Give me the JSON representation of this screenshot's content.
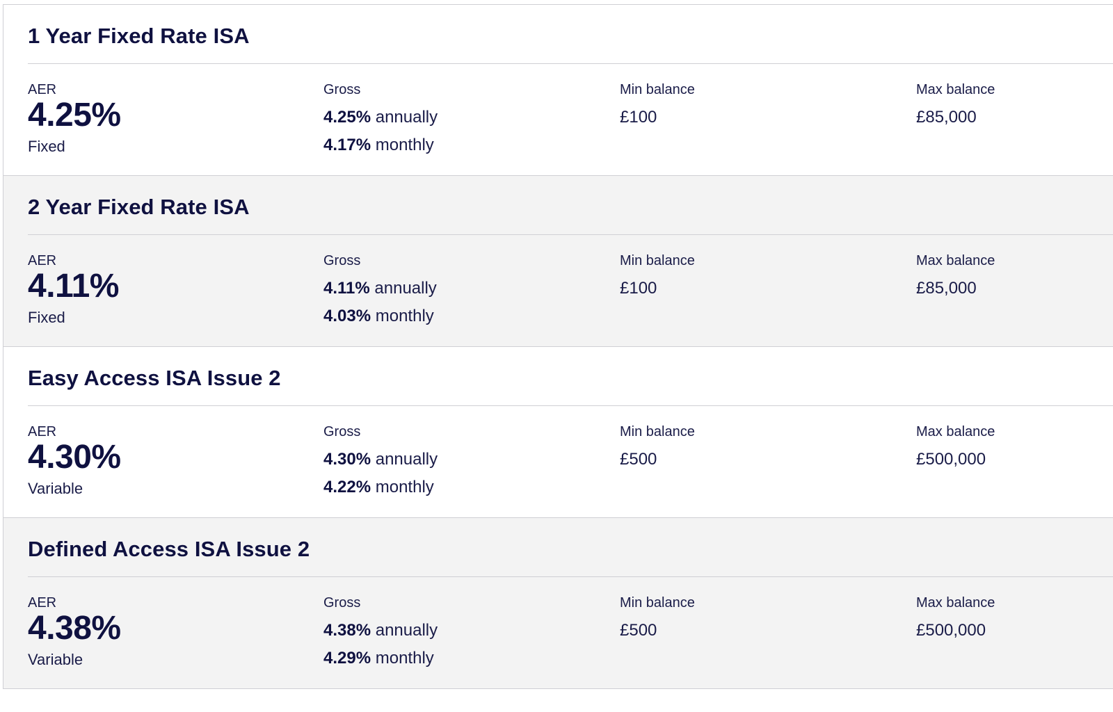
{
  "products": [
    {
      "name": "1 Year Fixed Rate ISA",
      "aer_label": "AER",
      "aer": "4.25%",
      "rate_type": "Fixed",
      "gross_label": "Gross",
      "gross_annual_rate": "4.25%",
      "gross_annual_text": "annually",
      "gross_monthly_rate": "4.17%",
      "gross_monthly_text": "monthly",
      "min_label": "Min balance",
      "min_balance": "£100",
      "max_label": "Max balance",
      "max_balance": "£85,000"
    },
    {
      "name": "2 Year Fixed Rate ISA",
      "aer_label": "AER",
      "aer": "4.11%",
      "rate_type": "Fixed",
      "gross_label": "Gross",
      "gross_annual_rate": "4.11%",
      "gross_annual_text": "annually",
      "gross_monthly_rate": "4.03%",
      "gross_monthly_text": "monthly",
      "min_label": "Min balance",
      "min_balance": "£100",
      "max_label": "Max balance",
      "max_balance": "£85,000"
    },
    {
      "name": "Easy Access ISA Issue 2",
      "aer_label": "AER",
      "aer": "4.30%",
      "rate_type": "Variable",
      "gross_label": "Gross",
      "gross_annual_rate": "4.30%",
      "gross_annual_text": "annually",
      "gross_monthly_rate": "4.22%",
      "gross_monthly_text": "monthly",
      "min_label": "Min balance",
      "min_balance": "£500",
      "max_label": "Max balance",
      "max_balance": "£500,000"
    },
    {
      "name": "Defined Access ISA Issue 2",
      "aer_label": "AER",
      "aer": "4.38%",
      "rate_type": "Variable",
      "gross_label": "Gross",
      "gross_annual_rate": "4.38%",
      "gross_annual_text": "annually",
      "gross_monthly_rate": "4.29%",
      "gross_monthly_text": "monthly",
      "min_label": "Min balance",
      "min_balance": "£500",
      "max_label": "Max balance",
      "max_balance": "£500,000"
    }
  ],
  "colors": {
    "text_primary": "#0f1140",
    "alt_row_background": "#f3f3f3",
    "divider": "#cfcfd4"
  }
}
